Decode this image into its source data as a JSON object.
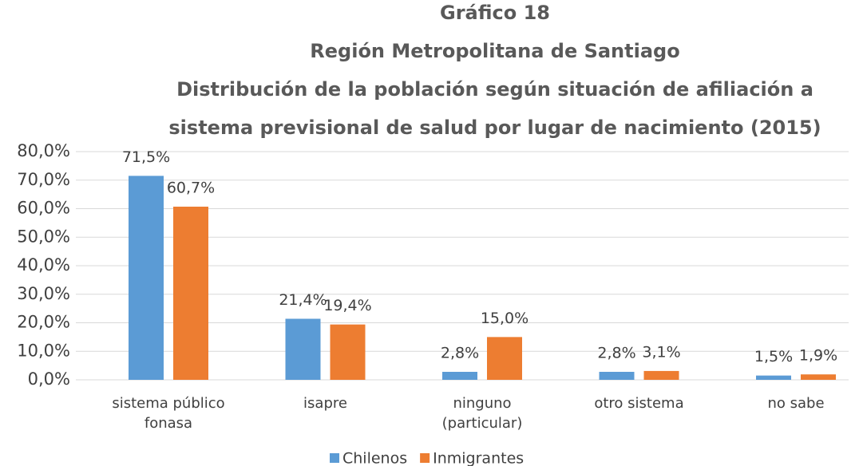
{
  "chart_data": {
    "type": "bar",
    "title": "Gráfico 18",
    "subtitle": [
      "Región Metropolitana de Santiago",
      "Distribución de la población según situación de afiliación a",
      "sistema previsional de salud por lugar de nacimiento (2015)"
    ],
    "categories": [
      [
        "sistema público",
        "fonasa"
      ],
      [
        "isapre"
      ],
      [
        "ninguno",
        "(particular)"
      ],
      [
        "otro sistema"
      ],
      [
        "no sabe"
      ]
    ],
    "series": [
      {
        "name": "Chilenos",
        "color": "#5b9bd5",
        "values": [
          71.5,
          21.4,
          2.8,
          2.8,
          1.5
        ],
        "value_labels": [
          "71,5%",
          "21,4%",
          "2,8%",
          "2,8%",
          "1,5%"
        ]
      },
      {
        "name": "Inmigrantes",
        "color": "#ed7d31",
        "values": [
          60.7,
          19.4,
          15.0,
          3.1,
          1.9
        ],
        "value_labels": [
          "60,7%",
          "19,4%",
          "15,0%",
          "3,1%",
          "1,9%"
        ]
      }
    ],
    "ylim": [
      0,
      80
    ],
    "yticks": [
      {
        "value": 0,
        "label": "0,0%"
      },
      {
        "value": 10,
        "label": "10,0%"
      },
      {
        "value": 20,
        "label": "20,0%"
      },
      {
        "value": 30,
        "label": "30,0%"
      },
      {
        "value": 40,
        "label": "40,0%"
      },
      {
        "value": 50,
        "label": "50,0%"
      },
      {
        "value": 60,
        "label": "60,0%"
      },
      {
        "value": 70,
        "label": "70,0%"
      },
      {
        "value": 80,
        "label": "80,0%"
      }
    ],
    "grid": true,
    "legend": "bottom"
  }
}
